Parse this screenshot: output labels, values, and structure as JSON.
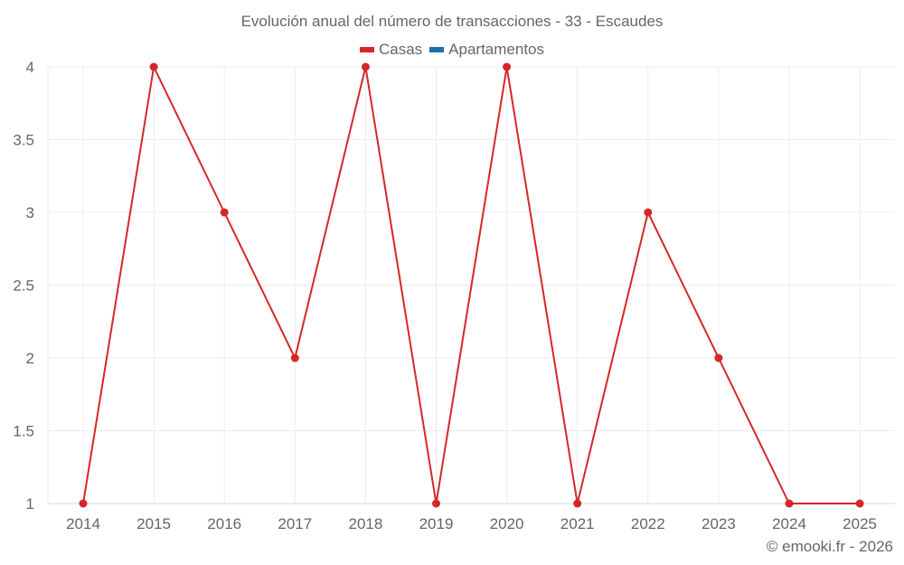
{
  "title": "Evolución anual del número de transacciones - 33 - Escaudes",
  "legend": [
    {
      "label": "Casas",
      "color": "#d62728"
    },
    {
      "label": "Apartamentos",
      "color": "#1f77b4"
    }
  ],
  "credit": "© emooki.fr - 2026",
  "chart_data": {
    "type": "line",
    "title": "Evolución anual del número de transacciones - 33 - Escaudes",
    "xlabel": "",
    "ylabel": "",
    "x": [
      "2014",
      "2015",
      "2016",
      "2017",
      "2018",
      "2019",
      "2020",
      "2021",
      "2022",
      "2023",
      "2024",
      "2025"
    ],
    "series": [
      {
        "name": "Casas",
        "color": "#d62728",
        "values": [
          1,
          4,
          3,
          2,
          4,
          1,
          4,
          1,
          3,
          2,
          1,
          1
        ]
      },
      {
        "name": "Apartamentos",
        "color": "#1f77b4",
        "values": []
      }
    ],
    "ylim": [
      1,
      4
    ],
    "yticks": [
      "1",
      "1.5",
      "2",
      "2.5",
      "3",
      "3.5",
      "4"
    ],
    "grid": true,
    "legend_position": "top"
  }
}
